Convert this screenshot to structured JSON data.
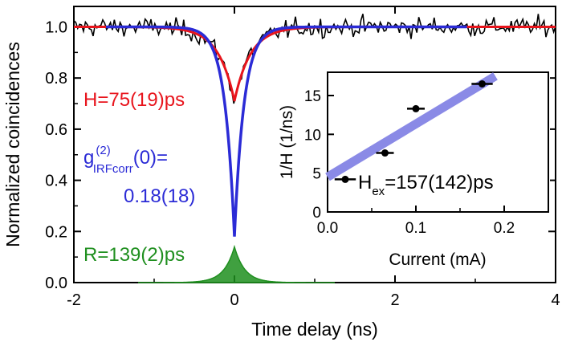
{
  "chart_data": [
    {
      "type": "line",
      "xlabel": "Time delay (ns)",
      "ylabel": "Normalized coincidences",
      "xlim": [
        -2,
        4
      ],
      "ylim": [
        0,
        1.08
      ],
      "xticks": [
        "-2",
        "0",
        "2",
        "4"
      ],
      "xtick_values": [
        -2,
        0,
        2,
        4
      ],
      "yticks": [
        "0.0",
        "0.2",
        "0.4",
        "0.6",
        "0.8",
        "1.0"
      ],
      "ytick_values": [
        0,
        0.2,
        0.4,
        0.6,
        0.8,
        1.0
      ],
      "colors": {
        "data": "#000000",
        "fit": "#e8141c",
        "deconvolved": "#2b2bd6",
        "irf": "#1f8f1f"
      },
      "series": [
        {
          "key": "data",
          "style": "noisy measured coincidences",
          "baseline": 1.0,
          "dip_min": 0.71,
          "dip_width_ns": 0.2
        },
        {
          "key": "fit",
          "style": "fit line",
          "baseline": 1.0,
          "dip_min": 0.71,
          "dip_width_ns": 0.2
        },
        {
          "key": "deconvolved",
          "style": "IRF-corrected fit",
          "baseline": 1.0,
          "dip_min": 0.18,
          "dip_width_ns": 0.12
        },
        {
          "key": "irf",
          "style": "instrument response function (filled)",
          "peak": 0.14,
          "peak_x": 0.0
        }
      ],
      "annotations": {
        "h": "H=75(19)ps",
        "g_main": "g",
        "g_sup": "(2)",
        "g_sub": "IRFcorr",
        "g_rest": "(0)=",
        "g_value": "0.18(18)",
        "r": "R=139(2)ps"
      }
    },
    {
      "type": "scatter",
      "xlabel": "Current (mA)",
      "ylabel": "1/H  (1/ns)",
      "xlim": [
        0,
        0.25
      ],
      "ylim": [
        0,
        18
      ],
      "xticks": [
        "0.0",
        "0.1",
        "0.2"
      ],
      "xtick_values": [
        0,
        0.1,
        0.2
      ],
      "yticks": [
        "0",
        "5",
        "10",
        "15"
      ],
      "ytick_values": [
        0,
        5,
        10,
        15
      ],
      "x": [
        0.02,
        0.065,
        0.1,
        0.175
      ],
      "y": [
        4.2,
        7.6,
        13.3,
        16.5
      ],
      "xerr": [
        0.012,
        0.01,
        0.01,
        0.012
      ],
      "fit_line": {
        "x": [
          0,
          0.19
        ],
        "y": [
          4.5,
          17.5
        ],
        "color": "#8a8ae6"
      },
      "annotation_main": "H",
      "annotation_sub": "ex",
      "annotation_rest": "=157(142)ps"
    }
  ]
}
